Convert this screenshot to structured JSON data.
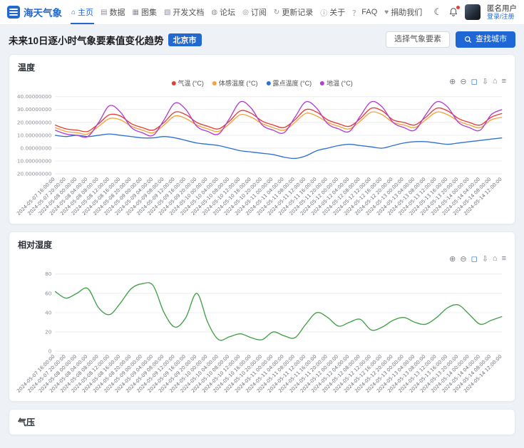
{
  "navbar": {
    "brand": "海天气象",
    "theme_toggle_glyph": "☾",
    "items": [
      {
        "label": "主页",
        "icon": "home",
        "glyph": "⌂",
        "active": true
      },
      {
        "label": "数据",
        "icon": "data",
        "glyph": "▤",
        "active": false
      },
      {
        "label": "图集",
        "icon": "gallery",
        "glyph": "▦",
        "active": false
      },
      {
        "label": "开发文档",
        "icon": "dev-docs",
        "glyph": "▧",
        "active": false
      },
      {
        "label": "论坛",
        "icon": "forum",
        "glyph": "◍",
        "active": false
      },
      {
        "label": "订阅",
        "icon": "subscribe",
        "glyph": "◎",
        "active": false
      },
      {
        "label": "更新记录",
        "icon": "changelog",
        "glyph": "↻",
        "active": false
      },
      {
        "label": "关于",
        "icon": "about",
        "glyph": "ⓘ",
        "active": false
      },
      {
        "label": "FAQ",
        "icon": "faq",
        "glyph": "？",
        "active": false
      },
      {
        "label": "捐助我们",
        "icon": "donate",
        "glyph": "♥",
        "active": false
      }
    ],
    "user": {
      "name": "匿名用户",
      "login": "登录/注册"
    }
  },
  "header": {
    "title": "未来10日逐小时气象要素值变化趋势",
    "city_badge": "北京市",
    "select_element_button": "选择气象要素",
    "find_city_button": "查找城市"
  },
  "toolbar_icons": [
    {
      "name": "zoom-in",
      "glyph": "⊕",
      "accent": false
    },
    {
      "name": "zoom-out",
      "glyph": "⊖",
      "accent": false
    },
    {
      "name": "box-zoom",
      "glyph": "◻",
      "accent": true
    },
    {
      "name": "download",
      "glyph": "⇩",
      "accent": false
    },
    {
      "name": "reset-home",
      "glyph": "⌂",
      "accent": false
    },
    {
      "name": "menu",
      "glyph": "≡",
      "accent": false
    }
  ],
  "pressure_section": {
    "title": "气压"
  },
  "chart_data": [
    {
      "type": "line",
      "title": "温度",
      "legend_position": "top-center",
      "grid": true,
      "ylim": [
        -20,
        40
      ],
      "y_ticks": [
        "40.00000000",
        "30.00000000",
        "20.00000000",
        "10.00000000",
        "0.00000000",
        "-10.00000000",
        "-20.00000000"
      ],
      "x": [
        "2024-05-07 16:00:00",
        "2024-05-07 20:00:00",
        "2024-05-08 00:00:00",
        "2024-05-08 04:00:00",
        "2024-05-08 08:00:00",
        "2024-05-08 12:00:00",
        "2024-05-08 16:00:00",
        "2024-05-08 20:00:00",
        "2024-05-09 00:00:00",
        "2024-05-09 04:00:00",
        "2024-05-09 08:00:00",
        "2024-05-09 12:00:00",
        "2024-05-09 16:00:00",
        "2024-05-09 20:00:00",
        "2024-05-10 00:00:00",
        "2024-05-10 04:00:00",
        "2024-05-10 08:00:00",
        "2024-05-10 12:00:00",
        "2024-05-10 16:00:00",
        "2024-05-10 20:00:00",
        "2024-05-11 00:00:00",
        "2024-05-11 04:00:00",
        "2024-05-11 08:00:00",
        "2024-05-11 12:00:00",
        "2024-05-11 16:00:00",
        "2024-05-11 20:00:00",
        "2024-05-12 00:00:00",
        "2024-05-12 04:00:00",
        "2024-05-12 08:00:00",
        "2024-05-12 12:00:00",
        "2024-05-12 16:00:00",
        "2024-05-12 20:00:00",
        "2024-05-13 00:00:00",
        "2024-05-13 04:00:00",
        "2024-05-13 08:00:00",
        "2024-05-13 12:00:00",
        "2024-05-13 16:00:00",
        "2024-05-13 20:00:00",
        "2024-05-14 00:00:00",
        "2024-05-14 04:00:00",
        "2024-05-14 08:00:00",
        "2024-05-14 12:00:00"
      ],
      "series": [
        {
          "name": "气温 (°C)",
          "color": "#e0403a",
          "values": [
            18,
            15,
            14,
            13,
            19,
            26,
            25,
            19,
            16,
            14,
            20,
            28,
            26,
            20,
            17,
            15,
            21,
            29,
            27,
            21,
            18,
            16,
            22,
            30,
            28,
            22,
            19,
            17,
            23,
            31,
            29,
            22,
            20,
            18,
            24,
            31,
            29,
            23,
            20,
            18,
            24,
            27
          ]
        },
        {
          "name": "体感温度 (°C)",
          "color": "#f5a33b",
          "values": [
            16,
            13,
            12,
            11,
            17,
            23,
            22,
            17,
            14,
            12,
            18,
            25,
            23,
            18,
            15,
            13,
            19,
            26,
            24,
            19,
            16,
            14,
            20,
            27,
            25,
            20,
            17,
            15,
            21,
            28,
            26,
            20,
            18,
            16,
            22,
            28,
            26,
            21,
            18,
            16,
            22,
            24
          ]
        },
        {
          "name": "露点温度 (°C)",
          "color": "#2e6fd4",
          "values": [
            10,
            9,
            10,
            9,
            10,
            11,
            10,
            9,
            8,
            8,
            9,
            8,
            6,
            4,
            3,
            2,
            0,
            -2,
            -3,
            -4,
            -5,
            -7,
            -8,
            -6,
            -2,
            0,
            2,
            3,
            2,
            1,
            0,
            2,
            4,
            5,
            5,
            4,
            3,
            4,
            5,
            6,
            7,
            8
          ]
        },
        {
          "name": "地温 (°C)",
          "color": "#b13fd0",
          "values": [
            14,
            11,
            10,
            9,
            20,
            33,
            28,
            16,
            12,
            10,
            22,
            35,
            30,
            17,
            13,
            11,
            23,
            36,
            31,
            18,
            14,
            12,
            24,
            36,
            31,
            19,
            15,
            13,
            25,
            36,
            32,
            20,
            16,
            14,
            26,
            36,
            32,
            20,
            16,
            14,
            26,
            30
          ]
        }
      ]
    },
    {
      "type": "line",
      "title": "相对湿度",
      "legend_position": "none",
      "grid": true,
      "ylim": [
        0,
        80
      ],
      "y_ticks": [
        "80",
        "60",
        "40",
        "20",
        "0"
      ],
      "x": [
        "2024-05-07 16:00:00",
        "2024-05-07 20:00:00",
        "2024-05-08 00:00:00",
        "2024-05-08 04:00:00",
        "2024-05-08 08:00:00",
        "2024-05-08 12:00:00",
        "2024-05-08 16:00:00",
        "2024-05-08 20:00:00",
        "2024-05-09 00:00:00",
        "2024-05-09 04:00:00",
        "2024-05-09 08:00:00",
        "2024-05-09 12:00:00",
        "2024-05-09 16:00:00",
        "2024-05-09 20:00:00",
        "2024-05-10 00:00:00",
        "2024-05-10 04:00:00",
        "2024-05-10 08:00:00",
        "2024-05-10 12:00:00",
        "2024-05-10 16:00:00",
        "2024-05-10 20:00:00",
        "2024-05-11 00:00:00",
        "2024-05-11 04:00:00",
        "2024-05-11 08:00:00",
        "2024-05-11 12:00:00",
        "2024-05-11 16:00:00",
        "2024-05-11 20:00:00",
        "2024-05-12 00:00:00",
        "2024-05-12 04:00:00",
        "2024-05-12 08:00:00",
        "2024-05-12 12:00:00",
        "2024-05-12 16:00:00",
        "2024-05-12 20:00:00",
        "2024-05-13 00:00:00",
        "2024-05-13 04:00:00",
        "2024-05-13 08:00:00",
        "2024-05-13 12:00:00",
        "2024-05-13 16:00:00",
        "2024-05-13 20:00:00",
        "2024-05-14 00:00:00",
        "2024-05-14 04:00:00",
        "2024-05-14 08:00:00",
        "2024-05-14 12:00:00"
      ],
      "series": [
        {
          "name": "相对湿度",
          "color": "#43a047",
          "values": [
            62,
            55,
            60,
            65,
            45,
            38,
            50,
            65,
            70,
            68,
            40,
            25,
            35,
            60,
            30,
            12,
            15,
            18,
            14,
            12,
            20,
            16,
            14,
            28,
            40,
            35,
            26,
            30,
            33,
            22,
            25,
            32,
            35,
            30,
            28,
            35,
            45,
            48,
            38,
            28,
            32,
            36
          ]
        }
      ]
    }
  ]
}
